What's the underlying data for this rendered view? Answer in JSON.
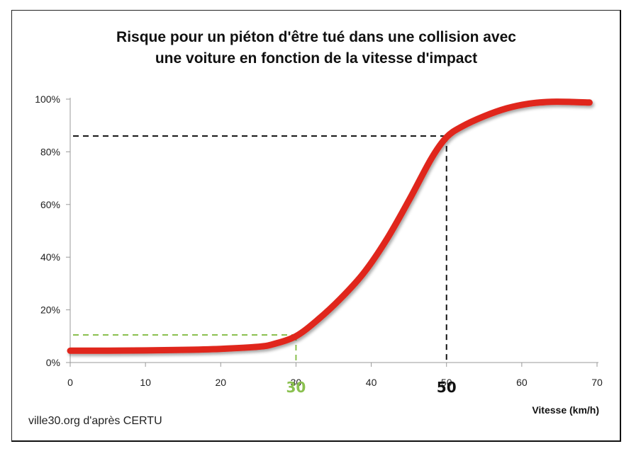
{
  "chart_data": {
    "type": "line",
    "title": "Risque pour un piéton d'être tué dans une collision avec une voiture en fonction de la vitesse d'impact",
    "title_lines": [
      "Risque pour un piéton d'être tué dans une collision avec",
      "une voiture en fonction de la vitesse d'impact"
    ],
    "xlabel": "Vitesse (km/h)",
    "ylabel": "",
    "xlim": [
      0,
      70
    ],
    "ylim": [
      0,
      100
    ],
    "x_ticks": [
      0,
      10,
      20,
      30,
      40,
      50,
      60,
      70
    ],
    "y_ticks": [
      "0%",
      "20%",
      "40%",
      "60%",
      "80%",
      "100%"
    ],
    "y_tick_values": [
      0,
      20,
      40,
      60,
      80,
      100
    ],
    "series": [
      {
        "color": "#e0261c",
        "x": [
          0,
          5,
          10,
          15,
          20,
          25,
          27,
          30,
          33,
          36,
          39,
          42,
          45,
          48,
          50,
          52,
          55,
          58,
          61,
          64,
          67,
          69
        ],
        "y": [
          4.5,
          4.5,
          4.6,
          4.8,
          5.2,
          6.0,
          7.0,
          10.0,
          16.5,
          24.5,
          34.0,
          46.5,
          61.5,
          77.5,
          85.5,
          89.5,
          93.5,
          96.5,
          98.3,
          99.0,
          98.9,
          98.7
        ]
      }
    ],
    "annotations": [
      {
        "label": "30",
        "x": 30,
        "y": 10.5,
        "color": "#8ac04f",
        "style": "dashed"
      },
      {
        "label": "50",
        "x": 50,
        "y": 86,
        "color": "#111111",
        "style": "dashed"
      }
    ],
    "grid": false
  },
  "footer": {
    "source": "ville30.org d'après CERTU"
  }
}
